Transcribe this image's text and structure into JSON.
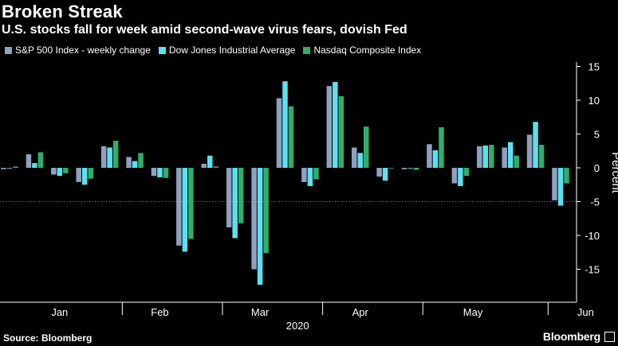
{
  "header": {
    "title": "Broken Streak",
    "subtitle": "U.S. stocks fall for week amid second-wave virus fears, dovish Fed"
  },
  "footer": {
    "source": "Source: Bloomberg",
    "brand": "Bloomberg"
  },
  "icons": {
    "brand_icon": "bloomberg-logo-square-icon"
  },
  "colors": {
    "background": "#000000",
    "sp500": "#8fa0c0",
    "dow": "#5ce0ee",
    "nasdaq": "#2fae6a",
    "reference_line": "#e03030",
    "axis": "#ffffff"
  },
  "chart_data": {
    "type": "bar",
    "title": "Broken Streak",
    "subtitle": "U.S. stocks fall for week amid second-wave virus fears, dovish Fed",
    "ylabel": "Percent",
    "xlabel": "2020",
    "ylim": [
      -20,
      15
    ],
    "yticks": [
      15,
      10,
      5,
      0,
      -5,
      -10,
      -15
    ],
    "legend_position": "top-left",
    "reference_line": {
      "value": -5,
      "style": "dotted"
    },
    "month_labels": [
      {
        "label": "Jan",
        "at_week": 2.5
      },
      {
        "label": "Feb",
        "at_week": 6.5
      },
      {
        "label": "Mar",
        "at_week": 10.5
      },
      {
        "label": "Apr",
        "at_week": 14.5
      },
      {
        "label": "May",
        "at_week": 19
      },
      {
        "label": "Jun",
        "at_week": 23.5
      }
    ],
    "year_label": {
      "label": "2020",
      "at_week": 12
    },
    "series": [
      {
        "name": "S&P 500 Index - weekly change",
        "values": [
          -0.2,
          2.0,
          -1.0,
          -2.1,
          3.2,
          1.6,
          -1.2,
          -11.5,
          0.6,
          -8.8,
          -15.0,
          10.3,
          -2.1,
          12.1,
          3.0,
          -1.3,
          -0.2,
          3.5,
          -2.3,
          3.2,
          3.0,
          4.9,
          -4.8
        ]
      },
      {
        "name": "Dow Jones Industrial Average",
        "values": [
          -0.1,
          0.7,
          -1.2,
          -2.5,
          3.0,
          1.0,
          -1.4,
          -12.4,
          1.8,
          -10.4,
          -17.3,
          12.8,
          -2.7,
          12.7,
          2.2,
          -1.9,
          -0.1,
          2.6,
          -2.7,
          3.3,
          3.8,
          6.8,
          -5.6
        ]
      },
      {
        "name": "Nasdaq Composite Index",
        "values": [
          0.2,
          2.3,
          -0.8,
          -1.6,
          4.0,
          2.2,
          -1.5,
          -10.5,
          0.2,
          -8.2,
          -12.6,
          9.1,
          -1.7,
          10.6,
          6.1,
          0.0,
          -0.3,
          6.0,
          -1.2,
          3.4,
          1.8,
          3.4,
          -2.3
        ]
      }
    ]
  }
}
